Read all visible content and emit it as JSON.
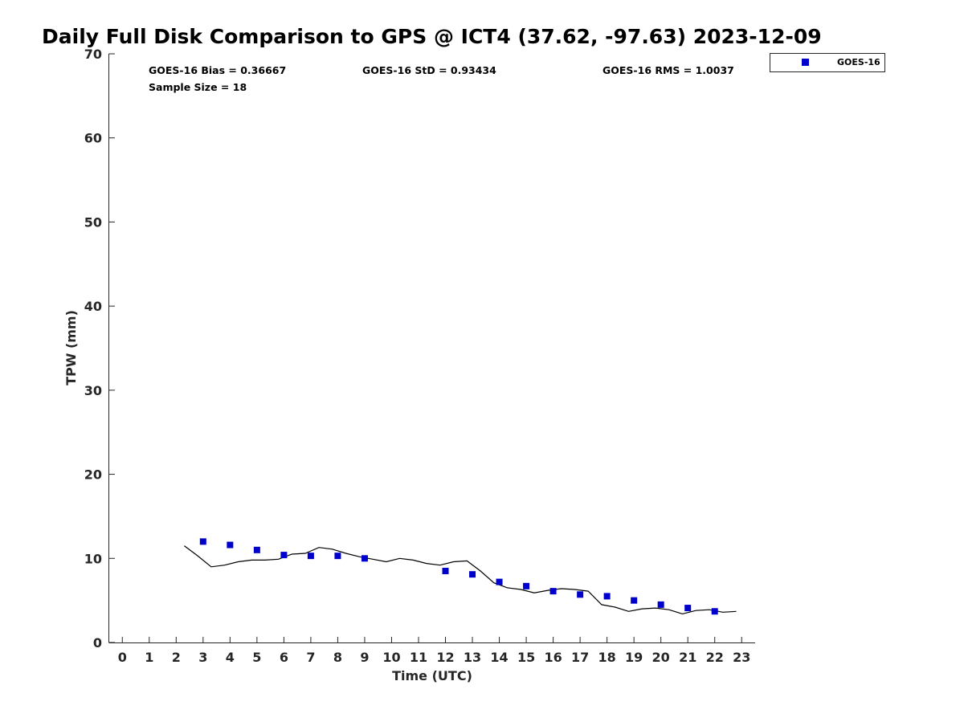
{
  "chart_data": {
    "type": "scatter",
    "title": "Daily Full Disk Comparison to GPS @ ICT4 (37.62, -97.63) 2023-12-09",
    "xlabel": "Time (UTC)",
    "ylabel": "TPW (mm)",
    "xlim": [
      -0.5,
      23.5
    ],
    "ylim": [
      0,
      70
    ],
    "x_ticks": [
      "0",
      "1",
      "2",
      "3",
      "4",
      "5",
      "6",
      "7",
      "8",
      "9",
      "10",
      "11",
      "12",
      "13",
      "14",
      "15",
      "16",
      "17",
      "18",
      "19",
      "20",
      "21",
      "22",
      "23"
    ],
    "y_ticks": [
      "0",
      "10",
      "20",
      "30",
      "40",
      "50",
      "60",
      "70"
    ],
    "grid": false,
    "legend_position": "top-right-outside",
    "stats": {
      "bias": "GOES-16 Bias = 0.36667",
      "std": "GOES-16 StD = 0.93434",
      "rms": "GOES-16 RMS = 1.0037",
      "sample": "Sample Size = 18"
    },
    "series": [
      {
        "name": "GOES-16",
        "kind": "scatter",
        "color": "#0000cc",
        "marker": "square",
        "x": [
          3,
          4,
          5,
          6,
          7,
          8,
          9,
          12,
          13,
          14,
          15,
          16,
          17,
          18,
          19,
          20,
          21,
          22
        ],
        "y": [
          12.0,
          11.6,
          11.0,
          10.4,
          10.3,
          10.3,
          10.0,
          8.5,
          8.1,
          7.2,
          6.7,
          6.1,
          5.7,
          5.5,
          5.0,
          4.5,
          4.1,
          3.7
        ]
      },
      {
        "kind": "line",
        "color": "#000000",
        "x": [
          2.3,
          2.8,
          3.3,
          3.8,
          4.3,
          4.8,
          5.3,
          5.8,
          6.3,
          6.8,
          7.3,
          7.8,
          8.3,
          8.8,
          9.3,
          9.8,
          10.3,
          10.8,
          11.3,
          11.8,
          12.3,
          12.8,
          13.3,
          13.8,
          14.3,
          14.8,
          15.3,
          15.8,
          16.3,
          16.8,
          17.3,
          17.8,
          18.3,
          18.8,
          19.3,
          19.8,
          20.3,
          20.8,
          21.3,
          21.8,
          22.3,
          22.8
        ],
        "y": [
          11.5,
          10.3,
          9.0,
          9.2,
          9.6,
          9.8,
          9.8,
          9.9,
          10.5,
          10.6,
          11.3,
          11.1,
          10.6,
          10.2,
          9.9,
          9.6,
          10.0,
          9.8,
          9.4,
          9.2,
          9.6,
          9.7,
          8.5,
          7.1,
          6.5,
          6.3,
          5.9,
          6.2,
          6.4,
          6.3,
          6.1,
          4.5,
          4.2,
          3.7,
          4.0,
          4.1,
          3.9,
          3.4,
          3.8,
          3.9,
          3.6,
          3.7
        ]
      }
    ]
  }
}
